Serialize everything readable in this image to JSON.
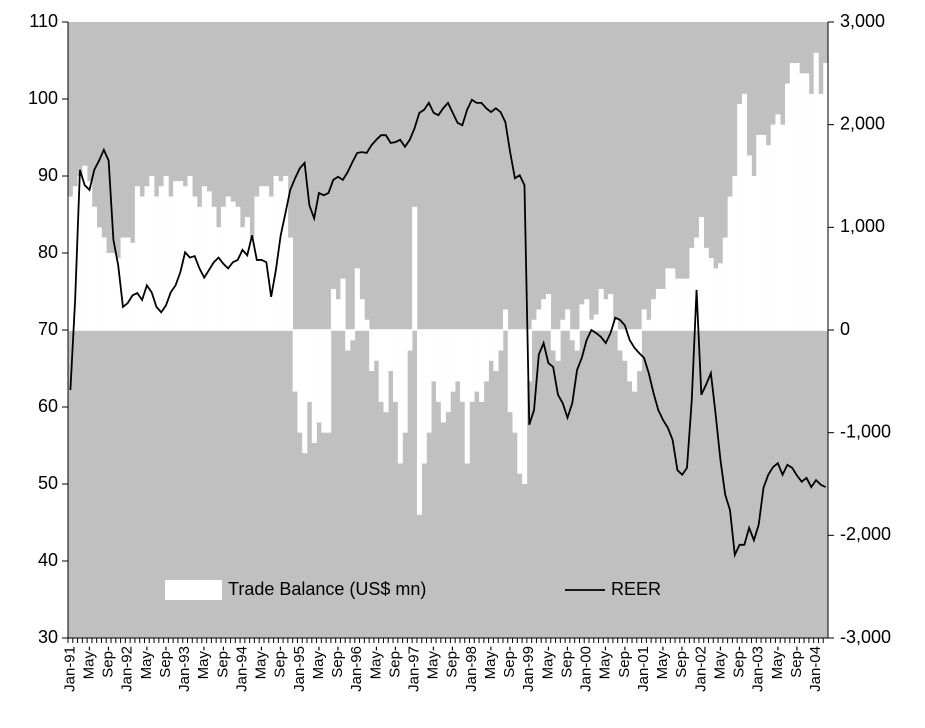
{
  "chart_data": {
    "type": "combo",
    "categories": [
      "Jan-91",
      null,
      null,
      null,
      "May-",
      null,
      null,
      null,
      "Sep-",
      null,
      null,
      null,
      "Jan-92",
      null,
      null,
      null,
      "May-",
      null,
      null,
      null,
      "Sep-",
      null,
      null,
      null,
      "Jan-93",
      null,
      null,
      null,
      "May-",
      null,
      null,
      null,
      "Sep-",
      null,
      null,
      null,
      "Jan-94",
      null,
      null,
      null,
      "May-",
      null,
      null,
      null,
      "Sep-",
      null,
      null,
      null,
      "Jan-95",
      null,
      null,
      null,
      "May-",
      null,
      null,
      null,
      "Sep-",
      null,
      null,
      null,
      "Jan-96",
      null,
      null,
      null,
      "May-",
      null,
      null,
      null,
      "Sep-",
      null,
      null,
      null,
      "Jan-97",
      null,
      null,
      null,
      "May-",
      null,
      null,
      null,
      "Sep-",
      null,
      null,
      null,
      "Jan-98",
      null,
      null,
      null,
      "May-",
      null,
      null,
      null,
      "Sep-",
      null,
      null,
      null,
      "Jan-99",
      null,
      null,
      null,
      "May-",
      null,
      null,
      null,
      "Sep-",
      null,
      null,
      null,
      "Jan-00",
      null,
      null,
      null,
      "May-",
      null,
      null,
      null,
      "Sep-",
      null,
      null,
      null,
      "Jan-01",
      null,
      null,
      null,
      "May-",
      null,
      null,
      null,
      "Sep-",
      null,
      null,
      null,
      "Jan-02",
      null,
      null,
      null,
      "May-",
      null,
      null,
      null,
      "Sep-",
      null,
      null,
      null,
      "Jan-03",
      null,
      null,
      null,
      "May-",
      null,
      null,
      null,
      "Sep-",
      null,
      null,
      null,
      "Jan-04",
      null,
      null
    ],
    "series": [
      {
        "name": "Trade Balance (US$ mn)",
        "type": "bar",
        "axis": "y2",
        "color": "#ffffff",
        "values": [
          1300,
          1400,
          1500,
          1600,
          1450,
          1200,
          1000,
          900,
          750,
          750,
          700,
          900,
          900,
          850,
          1400,
          1300,
          1400,
          1500,
          1300,
          1400,
          1500,
          1300,
          1450,
          1450,
          1400,
          1500,
          1300,
          1200,
          1400,
          1350,
          1200,
          1000,
          1200,
          1300,
          1250,
          1200,
          1000,
          1100,
          900,
          1300,
          1400,
          1400,
          1300,
          1500,
          1450,
          1500,
          900,
          -600,
          -1000,
          -1200,
          -700,
          -1100,
          -900,
          -1000,
          -1000,
          400,
          300,
          500,
          -200,
          -100,
          600,
          300,
          100,
          -400,
          -300,
          -700,
          -800,
          -400,
          -700,
          -1300,
          -1000,
          -200,
          1200,
          -1800,
          -1300,
          -1000,
          -500,
          -700,
          -900,
          -800,
          -600,
          -500,
          -700,
          -1300,
          -700,
          -600,
          -700,
          -500,
          -300,
          -400,
          -200,
          200,
          -800,
          -1000,
          -1400,
          -1500,
          -500,
          100,
          200,
          300,
          350,
          -200,
          -300,
          100,
          200,
          -100,
          -200,
          250,
          300,
          100,
          150,
          400,
          300,
          350,
          100,
          -200,
          -300,
          -500,
          -600,
          -400,
          200,
          100,
          300,
          400,
          400,
          600,
          600,
          500,
          500,
          500,
          800,
          900,
          1100,
          800,
          700,
          600,
          650,
          900,
          1300,
          1500,
          2200,
          2300,
          1700,
          1500,
          1900,
          1900,
          1800,
          2000,
          2100,
          2000,
          2400,
          2600,
          2600,
          2500,
          2500,
          2300,
          2700,
          2300,
          2600
        ]
      },
      {
        "name": "REER",
        "type": "line",
        "color": "#000000",
        "values": [
          62.2,
          74,
          90.8,
          88.8,
          88.2,
          90.8,
          92,
          93.4,
          92,
          81.7,
          78.4,
          73,
          73.5,
          74.5,
          74.8,
          73.9,
          75.8,
          74.9,
          73,
          72.3,
          73.2,
          74.9,
          75.8,
          77.5,
          80.1,
          79.4,
          79.6,
          78,
          76.8,
          77.8,
          78.8,
          79.4,
          78.6,
          78,
          78.8,
          79.1,
          80.4,
          79.7,
          82.3,
          79.1,
          79.1,
          78.8,
          74.3,
          77.8,
          82.3,
          85.2,
          88.2,
          89.7,
          91,
          91.7,
          86.2,
          84.5,
          87.8,
          87.5,
          87.8,
          89.5,
          89.9,
          89.5,
          90.5,
          91.8,
          93,
          93.1,
          93,
          94,
          94.7,
          95.3,
          95.3,
          94.3,
          94.4,
          94.7,
          93.8,
          94.7,
          96.2,
          98.2,
          98.6,
          99.5,
          98.2,
          97.9,
          98.8,
          99.5,
          98.2,
          96.9,
          96.6,
          98.6,
          99.9,
          99.5,
          99.5,
          98.8,
          98.3,
          98.8,
          98.3,
          97,
          93.1,
          89.7,
          90.1,
          88.8,
          57.7,
          59.6,
          66.8,
          68.3,
          65.7,
          65.2,
          61.6,
          60.5,
          58.6,
          60.5,
          64.8,
          66.4,
          68.7,
          70,
          69.6,
          69.1,
          68.3,
          69.6,
          71.6,
          71.3,
          70.6,
          68.7,
          67.7,
          67,
          66.4,
          64.4,
          61.8,
          59.6,
          58.3,
          57.3,
          55.7,
          51.8,
          51.2,
          52.1,
          60.9,
          75.2,
          61.6,
          62.9,
          64.4,
          59,
          53.1,
          48.6,
          46.6,
          40.8,
          42.1,
          42.1,
          44.3,
          42.7,
          44.7,
          49.5,
          51.2,
          52.2,
          52.7,
          51.2,
          52.5,
          52.1,
          51.1,
          50.3,
          50.8,
          49.6,
          50.5,
          49.9,
          49.6
        ]
      }
    ],
    "ylim": [
      30,
      110
    ],
    "yticks": [
      30,
      40,
      50,
      60,
      70,
      80,
      90,
      100,
      110
    ],
    "y2lim": [
      -3000,
      3000
    ],
    "y2ticks": [
      {
        "value": -3000,
        "label": "-3,000"
      },
      {
        "value": -2000,
        "label": "-2,000"
      },
      {
        "value": -1000,
        "label": "-1,000"
      },
      0,
      {
        "value": 1000,
        "label": "1,000"
      },
      {
        "value": 2000,
        "label": "2,000"
      },
      {
        "value": 3000,
        "label": "3,000"
      }
    ],
    "background": "#c0c0c0",
    "legend": "bottom"
  }
}
